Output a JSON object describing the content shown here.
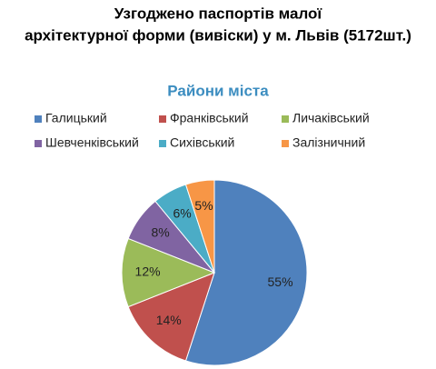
{
  "chart_data": {
    "type": "pie",
    "title": [
      "Узгоджено паспортів малої",
      "архітектурної форми (вивіски) у м. Львів (5172шт.)"
    ],
    "subtitle": "Райони міста",
    "categories": [
      "Галицький",
      "Франківський",
      "Личаківський",
      "Шевченківський",
      "Сихівський",
      "Залізничний"
    ],
    "values": [
      55,
      14,
      12,
      8,
      6,
      5
    ],
    "value_labels": [
      "55%",
      "14%",
      "12%",
      "8%",
      "6%",
      "5%"
    ],
    "colors": [
      "#4f81bd",
      "#c0504d",
      "#9bbb59",
      "#8064a2",
      "#4bacc6",
      "#f79646"
    ],
    "legend": "top"
  }
}
